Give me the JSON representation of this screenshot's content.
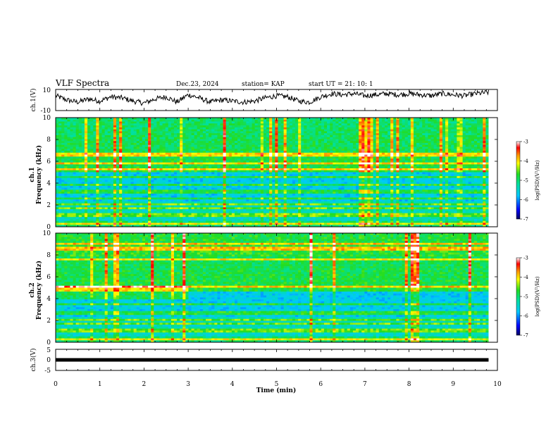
{
  "header": {
    "title": "VLF Spectra",
    "date": "Dec.23, 2024",
    "station": "station= KAP",
    "start_ut": "start  UT =   21: 10: 1"
  },
  "chart_data": [
    {
      "type": "line",
      "name": "ch1-waveform",
      "ylabel": "ch.1(V)",
      "ylim": [
        -10,
        10
      ],
      "ytick_labels": [
        "10",
        "-10"
      ],
      "xlim": [
        0,
        10
      ],
      "xlabel": "Time  (min)",
      "description_of_trace": "noisy waveform fluctuating roughly between -5 V and +8 V",
      "x": [
        0.0,
        0.25,
        0.5,
        0.75,
        1.0,
        1.25,
        1.5,
        1.75,
        2.0,
        2.25,
        2.5,
        2.75,
        3.0,
        3.25,
        3.5,
        3.75,
        4.0,
        4.25,
        4.5,
        4.75,
        5.0,
        5.25,
        5.5,
        5.75,
        6.0,
        6.25,
        6.5,
        6.75,
        7.0,
        7.25,
        7.5,
        7.75,
        8.0,
        8.25,
        8.5,
        8.75,
        9.0,
        9.25,
        9.5,
        9.75
      ],
      "y": [
        4,
        0,
        -2,
        1,
        -1,
        3,
        2,
        -1,
        -3,
        1,
        3,
        -2,
        5,
        2,
        -2,
        0,
        -1,
        -2,
        -1,
        2,
        4,
        3,
        -1,
        -2,
        3,
        6,
        5,
        6,
        4,
        5,
        6,
        5,
        6,
        5,
        4,
        6,
        5,
        4,
        6,
        7
      ]
    },
    {
      "type": "heatmap",
      "name": "ch1-spectrogram",
      "ylabel": "ch.1\nFrequency (kHz)",
      "ylim": [
        0,
        10
      ],
      "yticks": [
        0,
        2,
        4,
        6,
        8,
        10
      ],
      "xlim": [
        0,
        10
      ],
      "colorbar_label": "log(PSD)(V²/Hz)",
      "colorbar_range": [
        -7,
        -3
      ],
      "colorbar_ticks": [
        -3,
        -4,
        -5,
        -6,
        -7
      ],
      "bands_khz": [
        0.3,
        1.1,
        1.7,
        2.1,
        2.6,
        3.2,
        3.8,
        4.6,
        5.3,
        5.8,
        6.6
      ]
    },
    {
      "type": "heatmap",
      "name": "ch2-spectrogram",
      "ylabel": "ch.2\nFrequency (kHz)",
      "ylim": [
        0,
        10
      ],
      "yticks": [
        0,
        2,
        4,
        6,
        8,
        10
      ],
      "xlim": [
        0,
        10
      ],
      "colorbar_label": "log(PSD)(V²/Hz)",
      "colorbar_range": [
        -7,
        -3
      ],
      "colorbar_ticks": [
        -3,
        -4,
        -5,
        -6,
        -7
      ],
      "bands_khz": [
        0.3,
        1.1,
        1.7,
        2.1,
        2.7,
        3.5,
        4.7,
        5.0,
        7.6,
        8.6,
        9.0
      ]
    },
    {
      "type": "line",
      "name": "ch3-waveform",
      "ylabel": "ch.3(V)",
      "ylim": [
        -5,
        5
      ],
      "ytick_labels": [
        "5",
        "0",
        "-5"
      ],
      "xlim": [
        0,
        10
      ],
      "xticks": [
        0,
        1,
        2,
        3,
        4,
        5,
        6,
        7,
        8,
        9,
        10
      ],
      "xlabel": "Time  (min)",
      "x": [
        0,
        9.8
      ],
      "y": [
        0,
        0
      ]
    }
  ],
  "colors": {
    "colormap": [
      "#7a1fa0",
      "#0000ff",
      "#00c8ff",
      "#00e0a0",
      "#22dd22",
      "#ffff00",
      "#ff9900",
      "#ff0000",
      "#ffffff"
    ]
  }
}
